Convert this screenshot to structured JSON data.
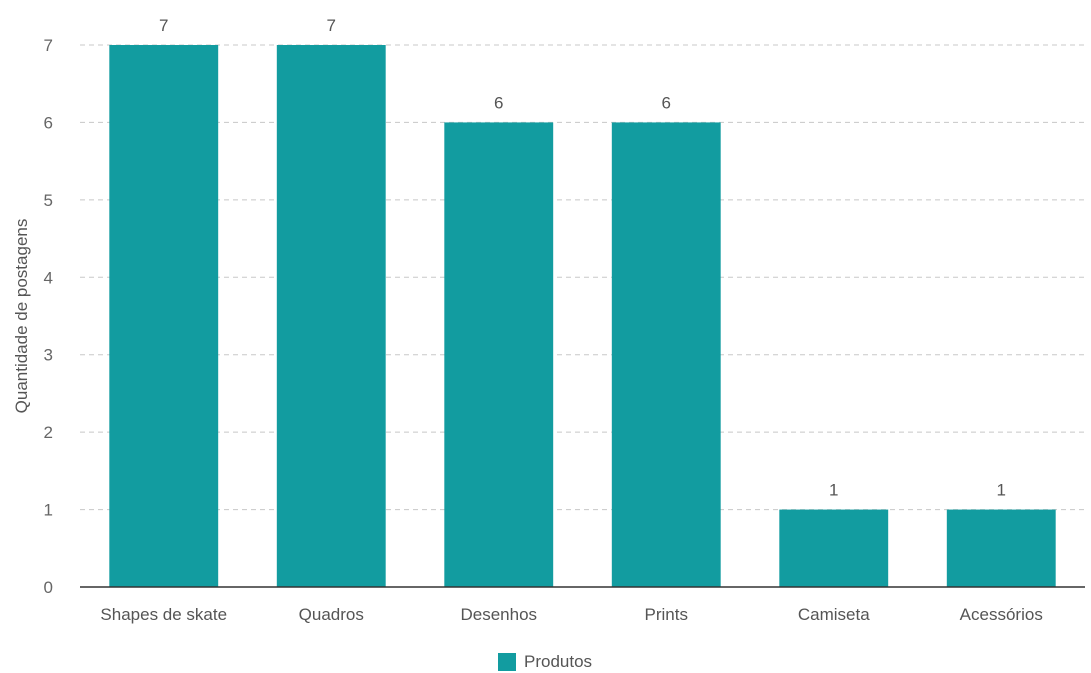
{
  "chart_data": {
    "type": "bar",
    "ylabel": "Quantidade de postagens",
    "xlabel": "",
    "categories": [
      "Shapes de skate",
      "Quadros",
      "Desenhos",
      "Prints",
      "Camiseta",
      "Acessórios"
    ],
    "series": [
      {
        "name": "Produtos",
        "values": [
          7,
          7,
          6,
          6,
          1,
          1
        ],
        "color": "#129ca0"
      }
    ],
    "data_labels": [
      "7",
      "7",
      "6",
      "6",
      "1",
      "1"
    ],
    "ylim": [
      0,
      7
    ],
    "yticks": [
      "0",
      "1",
      "2",
      "3",
      "4",
      "5",
      "6",
      "7"
    ],
    "grid": "horizontal dashed",
    "legend_position": "bottom-center"
  },
  "legend": {
    "label": "Produtos"
  },
  "colors": {
    "bar": "#129ca0",
    "grid": "#c8c8c8",
    "axis": "#333333"
  }
}
